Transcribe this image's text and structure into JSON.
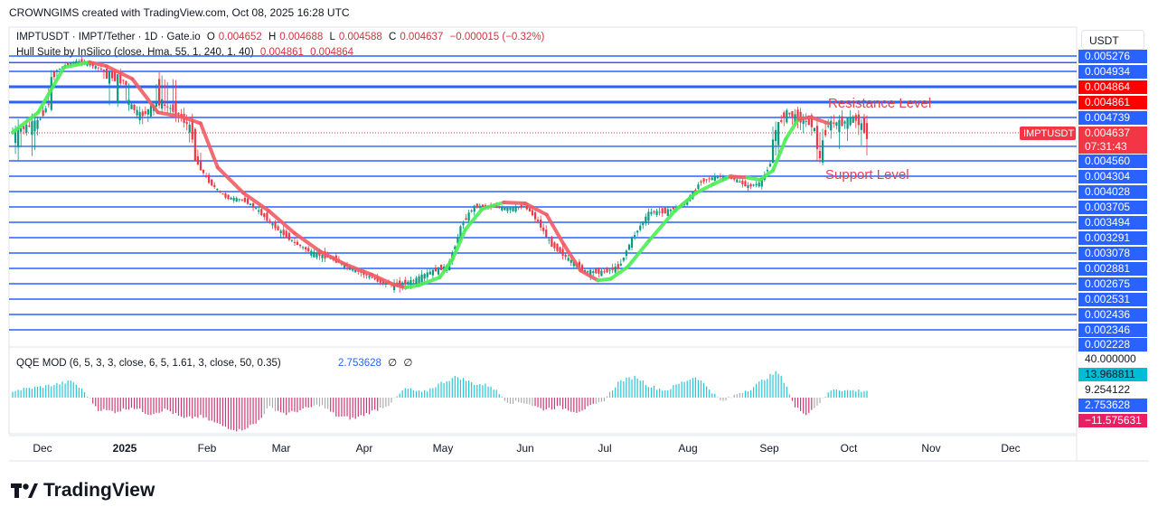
{
  "header": "CROWNGIMS created with TradingView.com, Oct 08, 2025 16:28 UTC",
  "currency": "USDT",
  "legend": {
    "symbol": "IMPTUSDT · IMPT/Tether · 1D · Gate.io",
    "o_label": "O",
    "o": "0.004652",
    "h_label": "H",
    "h": "0.004688",
    "l_label": "L",
    "l": "0.004588",
    "c_label": "C",
    "c": "0.004637",
    "change": "−0.000015 (−0.32%)",
    "hull_label": "Hull Suite by InSilico (close, Hma, 55, 1, 240, 1, 40)",
    "hull_v1": "0.004861",
    "hull_v2": "0.004864",
    "qqe_label": "QQE MOD (6, 5, 3, 3, close, 6, 5, 1.61, 3, close, 50, 0.35)",
    "qqe_value": "2.753628",
    "qqe_na1": "∅",
    "qqe_na2": "∅"
  },
  "brand": "TradingView",
  "chart_data": [
    {
      "type": "line",
      "title": "IMPTUSDT · IMPT/Tether · 1D · Gate.io",
      "x_ticks": [
        "Dec",
        "2025",
        "Feb",
        "Mar",
        "Apr",
        "May",
        "Jun",
        "Jul",
        "Aug",
        "Sep",
        "Oct",
        "Nov",
        "Dec"
      ],
      "price_axis": [
        "0.005276",
        "0.004934",
        "0.004864",
        "0.004861",
        "0.004739",
        "0.004637",
        "0.004560",
        "0.004304",
        "0.004028",
        "0.003705",
        "0.003494",
        "0.003291",
        "0.003078",
        "0.002881",
        "0.002675",
        "0.002531",
        "0.002436",
        "0.002346",
        "0.002228"
      ],
      "horizontal_levels": [
        0.005276,
        0.00513,
        0.004934,
        0.004864,
        0.004861,
        0.004739,
        0.0046,
        0.00456,
        0.004304,
        0.004028,
        0.003705,
        0.003494,
        0.003291,
        0.003078,
        0.002881,
        0.002675,
        0.002531,
        0.002436,
        0.002346
      ],
      "annotations": {
        "resistance": "Resistance Level",
        "support": "Support Level"
      },
      "current_price": {
        "symbol": "IMPTUSDT",
        "value": "0.004637",
        "countdown": "07:31:43"
      },
      "hull_badges": [
        "0.004864",
        "0.004861"
      ],
      "price_path": [
        [
          0.0,
          0.00464
        ],
        [
          0.03,
          0.00471
        ],
        [
          0.06,
          0.00506
        ],
        [
          0.075,
          0.00516
        ],
        [
          0.09,
          0.00509
        ],
        [
          0.11,
          0.00492
        ],
        [
          0.13,
          0.00489
        ],
        [
          0.15,
          0.00475
        ],
        [
          0.17,
          0.00486
        ],
        [
          0.19,
          0.00479
        ],
        [
          0.21,
          0.00465
        ],
        [
          0.23,
          0.0042
        ],
        [
          0.25,
          0.0039
        ],
        [
          0.27,
          0.00385
        ],
        [
          0.29,
          0.00362
        ],
        [
          0.31,
          0.0034
        ],
        [
          0.33,
          0.00322
        ],
        [
          0.35,
          0.00308
        ],
        [
          0.37,
          0.00302
        ],
        [
          0.39,
          0.00292
        ],
        [
          0.41,
          0.00281
        ],
        [
          0.43,
          0.0027
        ],
        [
          0.45,
          0.00266
        ],
        [
          0.47,
          0.00272
        ],
        [
          0.49,
          0.00284
        ],
        [
          0.51,
          0.00291
        ],
        [
          0.525,
          0.00345
        ],
        [
          0.54,
          0.00372
        ],
        [
          0.56,
          0.00372
        ],
        [
          0.58,
          0.00368
        ],
        [
          0.6,
          0.00372
        ],
        [
          0.615,
          0.0035
        ],
        [
          0.63,
          0.0032
        ],
        [
          0.65,
          0.003
        ],
        [
          0.67,
          0.00284
        ],
        [
          0.69,
          0.00283
        ],
        [
          0.71,
          0.0029
        ],
        [
          0.725,
          0.00328
        ],
        [
          0.745,
          0.00363
        ],
        [
          0.765,
          0.00364
        ],
        [
          0.785,
          0.00375
        ],
        [
          0.805,
          0.00421
        ],
        [
          0.825,
          0.0043
        ],
        [
          0.845,
          0.00425
        ],
        [
          0.86,
          0.00412
        ],
        [
          0.875,
          0.00418
        ],
        [
          0.89,
          0.00462
        ],
        [
          0.905,
          0.00478
        ],
        [
          0.92,
          0.00473
        ],
        [
          0.935,
          0.0047
        ],
        [
          0.945,
          0.00456
        ],
        [
          0.955,
          0.0047
        ],
        [
          0.97,
          0.0047
        ],
        [
          0.985,
          0.00474
        ],
        [
          1.0,
          0.004637
        ]
      ],
      "hull_path": [
        [
          0.0,
          0.00464,
          "g"
        ],
        [
          0.03,
          0.00478,
          "g"
        ],
        [
          0.06,
          0.00502,
          "g"
        ],
        [
          0.09,
          0.00514,
          "g"
        ],
        [
          0.11,
          0.00505,
          "r"
        ],
        [
          0.14,
          0.0049,
          "r"
        ],
        [
          0.17,
          0.00478,
          "r"
        ],
        [
          0.2,
          0.00474,
          "r"
        ],
        [
          0.22,
          0.0047,
          "r"
        ],
        [
          0.24,
          0.00445,
          "r"
        ],
        [
          0.27,
          0.004,
          "r"
        ],
        [
          0.3,
          0.00365,
          "r"
        ],
        [
          0.33,
          0.00335,
          "r"
        ],
        [
          0.36,
          0.0031,
          "r"
        ],
        [
          0.39,
          0.00293,
          "r"
        ],
        [
          0.42,
          0.0028,
          "r"
        ],
        [
          0.445,
          0.00267,
          "r"
        ],
        [
          0.46,
          0.00264,
          "r"
        ],
        [
          0.475,
          0.00266,
          "g"
        ],
        [
          0.5,
          0.00276,
          "g"
        ],
        [
          0.515,
          0.003,
          "g"
        ],
        [
          0.53,
          0.0034,
          "g"
        ],
        [
          0.55,
          0.00368,
          "g"
        ],
        [
          0.575,
          0.0038,
          "g"
        ],
        [
          0.6,
          0.00378,
          "r"
        ],
        [
          0.625,
          0.0036,
          "r"
        ],
        [
          0.645,
          0.0032,
          "r"
        ],
        [
          0.665,
          0.00285,
          "r"
        ],
        [
          0.685,
          0.00272,
          "r"
        ],
        [
          0.7,
          0.00274,
          "g"
        ],
        [
          0.72,
          0.0029,
          "g"
        ],
        [
          0.745,
          0.00325,
          "g"
        ],
        [
          0.775,
          0.00365,
          "g"
        ],
        [
          0.8,
          0.004,
          "g"
        ],
        [
          0.82,
          0.00416,
          "g"
        ],
        [
          0.84,
          0.0043,
          "g"
        ],
        [
          0.86,
          0.00428,
          "r"
        ],
        [
          0.875,
          0.00424,
          "g"
        ],
        [
          0.89,
          0.0044,
          "g"
        ],
        [
          0.905,
          0.00462,
          "g"
        ],
        [
          0.92,
          0.00473,
          "g"
        ],
        [
          0.935,
          0.00474,
          "r"
        ],
        [
          0.955,
          0.0047,
          "r"
        ]
      ]
    },
    {
      "type": "bar",
      "title": "QQE MOD (6, 5, 3, 3, close, 6, 5, 1.61, 3, close, 50, 0.35)",
      "right_axis": [
        "40.000000",
        "13.968811",
        "9.254122",
        "2.753628",
        "−11.575631"
      ],
      "ylim": [
        -40,
        40
      ],
      "histogram_anchors": [
        [
          0.0,
          6,
          "c"
        ],
        [
          0.04,
          10,
          "c"
        ],
        [
          0.07,
          14,
          "c"
        ],
        [
          0.085,
          4,
          "c"
        ],
        [
          0.1,
          -10,
          "m"
        ],
        [
          0.12,
          -12,
          "m"
        ],
        [
          0.14,
          -8,
          "m"
        ],
        [
          0.16,
          -14,
          "m"
        ],
        [
          0.18,
          -10,
          "m"
        ],
        [
          0.2,
          -18,
          "m"
        ],
        [
          0.22,
          -16,
          "m"
        ],
        [
          0.245,
          -24,
          "m"
        ],
        [
          0.265,
          -28,
          "m"
        ],
        [
          0.285,
          -22,
          "m"
        ],
        [
          0.3,
          -8,
          "g"
        ],
        [
          0.32,
          -14,
          "m"
        ],
        [
          0.34,
          -10,
          "m"
        ],
        [
          0.36,
          -6,
          "g"
        ],
        [
          0.38,
          -16,
          "m"
        ],
        [
          0.4,
          -18,
          "m"
        ],
        [
          0.42,
          -12,
          "m"
        ],
        [
          0.44,
          -6,
          "g"
        ],
        [
          0.46,
          8,
          "c"
        ],
        [
          0.48,
          4,
          "c"
        ],
        [
          0.5,
          12,
          "c"
        ],
        [
          0.52,
          18,
          "c"
        ],
        [
          0.54,
          12,
          "c"
        ],
        [
          0.56,
          10,
          "c"
        ],
        [
          0.58,
          -4,
          "g"
        ],
        [
          0.6,
          -4,
          "g"
        ],
        [
          0.62,
          -10,
          "m"
        ],
        [
          0.64,
          -8,
          "m"
        ],
        [
          0.66,
          -12,
          "m"
        ],
        [
          0.675,
          -8,
          "m"
        ],
        [
          0.69,
          -4,
          "g"
        ],
        [
          0.71,
          14,
          "c"
        ],
        [
          0.73,
          18,
          "c"
        ],
        [
          0.745,
          10,
          "c"
        ],
        [
          0.765,
          6,
          "c"
        ],
        [
          0.78,
          12,
          "c"
        ],
        [
          0.8,
          18,
          "c"
        ],
        [
          0.815,
          8,
          "c"
        ],
        [
          0.83,
          -4,
          "g"
        ],
        [
          0.85,
          4,
          "g"
        ],
        [
          0.865,
          8,
          "c"
        ],
        [
          0.88,
          16,
          "c"
        ],
        [
          0.895,
          22,
          "c"
        ],
        [
          0.905,
          12,
          "c"
        ],
        [
          0.915,
          -8,
          "m"
        ],
        [
          0.93,
          -14,
          "m"
        ],
        [
          0.945,
          -4,
          "g"
        ],
        [
          0.96,
          8,
          "c"
        ],
        [
          0.975,
          6,
          "c"
        ]
      ]
    }
  ]
}
